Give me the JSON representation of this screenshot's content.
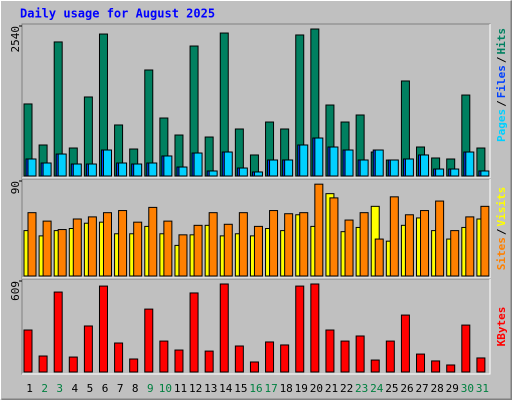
{
  "chart_data": [
    {
      "type": "bar",
      "title": "Daily usage for August 2025",
      "ylim": [
        0,
        2540
      ],
      "yticks": [
        2540
      ],
      "legend_separator": "/",
      "series": [
        {
          "name": "Hits",
          "color": "#008060",
          "values": [
            1220,
            525,
            2270,
            474,
            1338,
            2404,
            864,
            457,
            1795,
            982,
            694,
            2201,
            660,
            2421,
            796,
            356,
            914,
            796,
            2388,
            2489,
            1202,
            914,
            1033,
            406,
            270,
            1609,
            491,
            305,
            288,
            1371,
            474
          ]
        },
        {
          "name": "Files",
          "color": "#0040ff",
          "values": [
            288,
            220,
            372,
            203,
            203,
            440,
            220,
            203,
            220,
            339,
            152,
            389,
            85,
            406,
            135,
            68,
            271,
            271,
            525,
            643,
            491,
            440,
            271,
            440,
            271,
            288,
            356,
            118,
            118,
            406,
            85
          ]
        },
        {
          "name": "Pages",
          "color": "#00d0ff",
          "values": [
            288,
            220,
            372,
            203,
            203,
            440,
            220,
            203,
            220,
            339,
            152,
            389,
            85,
            406,
            135,
            68,
            271,
            271,
            525,
            643,
            491,
            440,
            271,
            440,
            271,
            288,
            356,
            118,
            118,
            406,
            85
          ]
        }
      ]
    },
    {
      "type": "bar",
      "ylim": [
        0,
        90
      ],
      "yticks": [
        90
      ],
      "legend_separator": "/",
      "series": [
        {
          "name": "Visits",
          "color": "#ffff00",
          "values": [
            43,
            38,
            43,
            45,
            50,
            51,
            40,
            40,
            47,
            40,
            29,
            39,
            48,
            38,
            40,
            38,
            45,
            43,
            58,
            47,
            78,
            42,
            46,
            66,
            33,
            48,
            55,
            43,
            35,
            46,
            54
          ]
        },
        {
          "name": "Sites",
          "color": "#ff8000",
          "values": [
            60,
            52,
            44,
            54,
            56,
            60,
            62,
            51,
            65,
            52,
            39,
            48,
            60,
            49,
            60,
            47,
            62,
            59,
            60,
            87,
            74,
            53,
            60,
            35,
            75,
            58,
            62,
            71,
            43,
            56,
            66
          ]
        }
      ]
    },
    {
      "type": "bar",
      "ylim": [
        0,
        609
      ],
      "yticks": [
        609
      ],
      "categories": [
        "1",
        "2",
        "3",
        "4",
        "5",
        "6",
        "7",
        "8",
        "9",
        "10",
        "11",
        "12",
        "13",
        "14",
        "15",
        "16",
        "17",
        "18",
        "19",
        "20",
        "21",
        "22",
        "23",
        "24",
        "25",
        "26",
        "27",
        "28",
        "29",
        "30",
        "31"
      ],
      "category_colors": [
        "#000000",
        "#008040",
        "#008040",
        "#000000",
        "#000000",
        "#000000",
        "#000000",
        "#000000",
        "#008040",
        "#008040",
        "#000000",
        "#000000",
        "#000000",
        "#000000",
        "#000000",
        "#008040",
        "#008040",
        "#000000",
        "#000000",
        "#000000",
        "#000000",
        "#000000",
        "#008040",
        "#008040",
        "#000000",
        "#000000",
        "#000000",
        "#000000",
        "#000000",
        "#008040",
        "#008040"
      ],
      "series": [
        {
          "name": "KBytes",
          "color": "#ff0000",
          "values": [
            281,
            107,
            535,
            100,
            308,
            575,
            194,
            87,
            421,
            207,
            147,
            529,
            140,
            589,
            174,
            67,
            201,
            181,
            575,
            589,
            281,
            207,
            241,
            80,
            207,
            381,
            120,
            74,
            47,
            314,
            94
          ]
        }
      ]
    }
  ]
}
